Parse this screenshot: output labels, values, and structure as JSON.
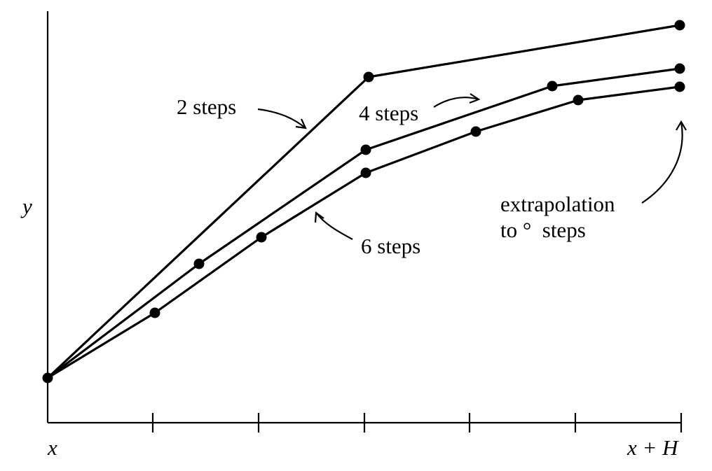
{
  "diagram": {
    "axes": {
      "y_label": "y",
      "x_start_label": "x",
      "x_end_label": "x + H"
    },
    "annotations": {
      "two_steps": "2 steps",
      "four_steps": "4 steps",
      "six_steps": "6 steps",
      "extrapolation_line1": "extrapolation",
      "extrapolation_line2": "to °  steps"
    }
  }
}
